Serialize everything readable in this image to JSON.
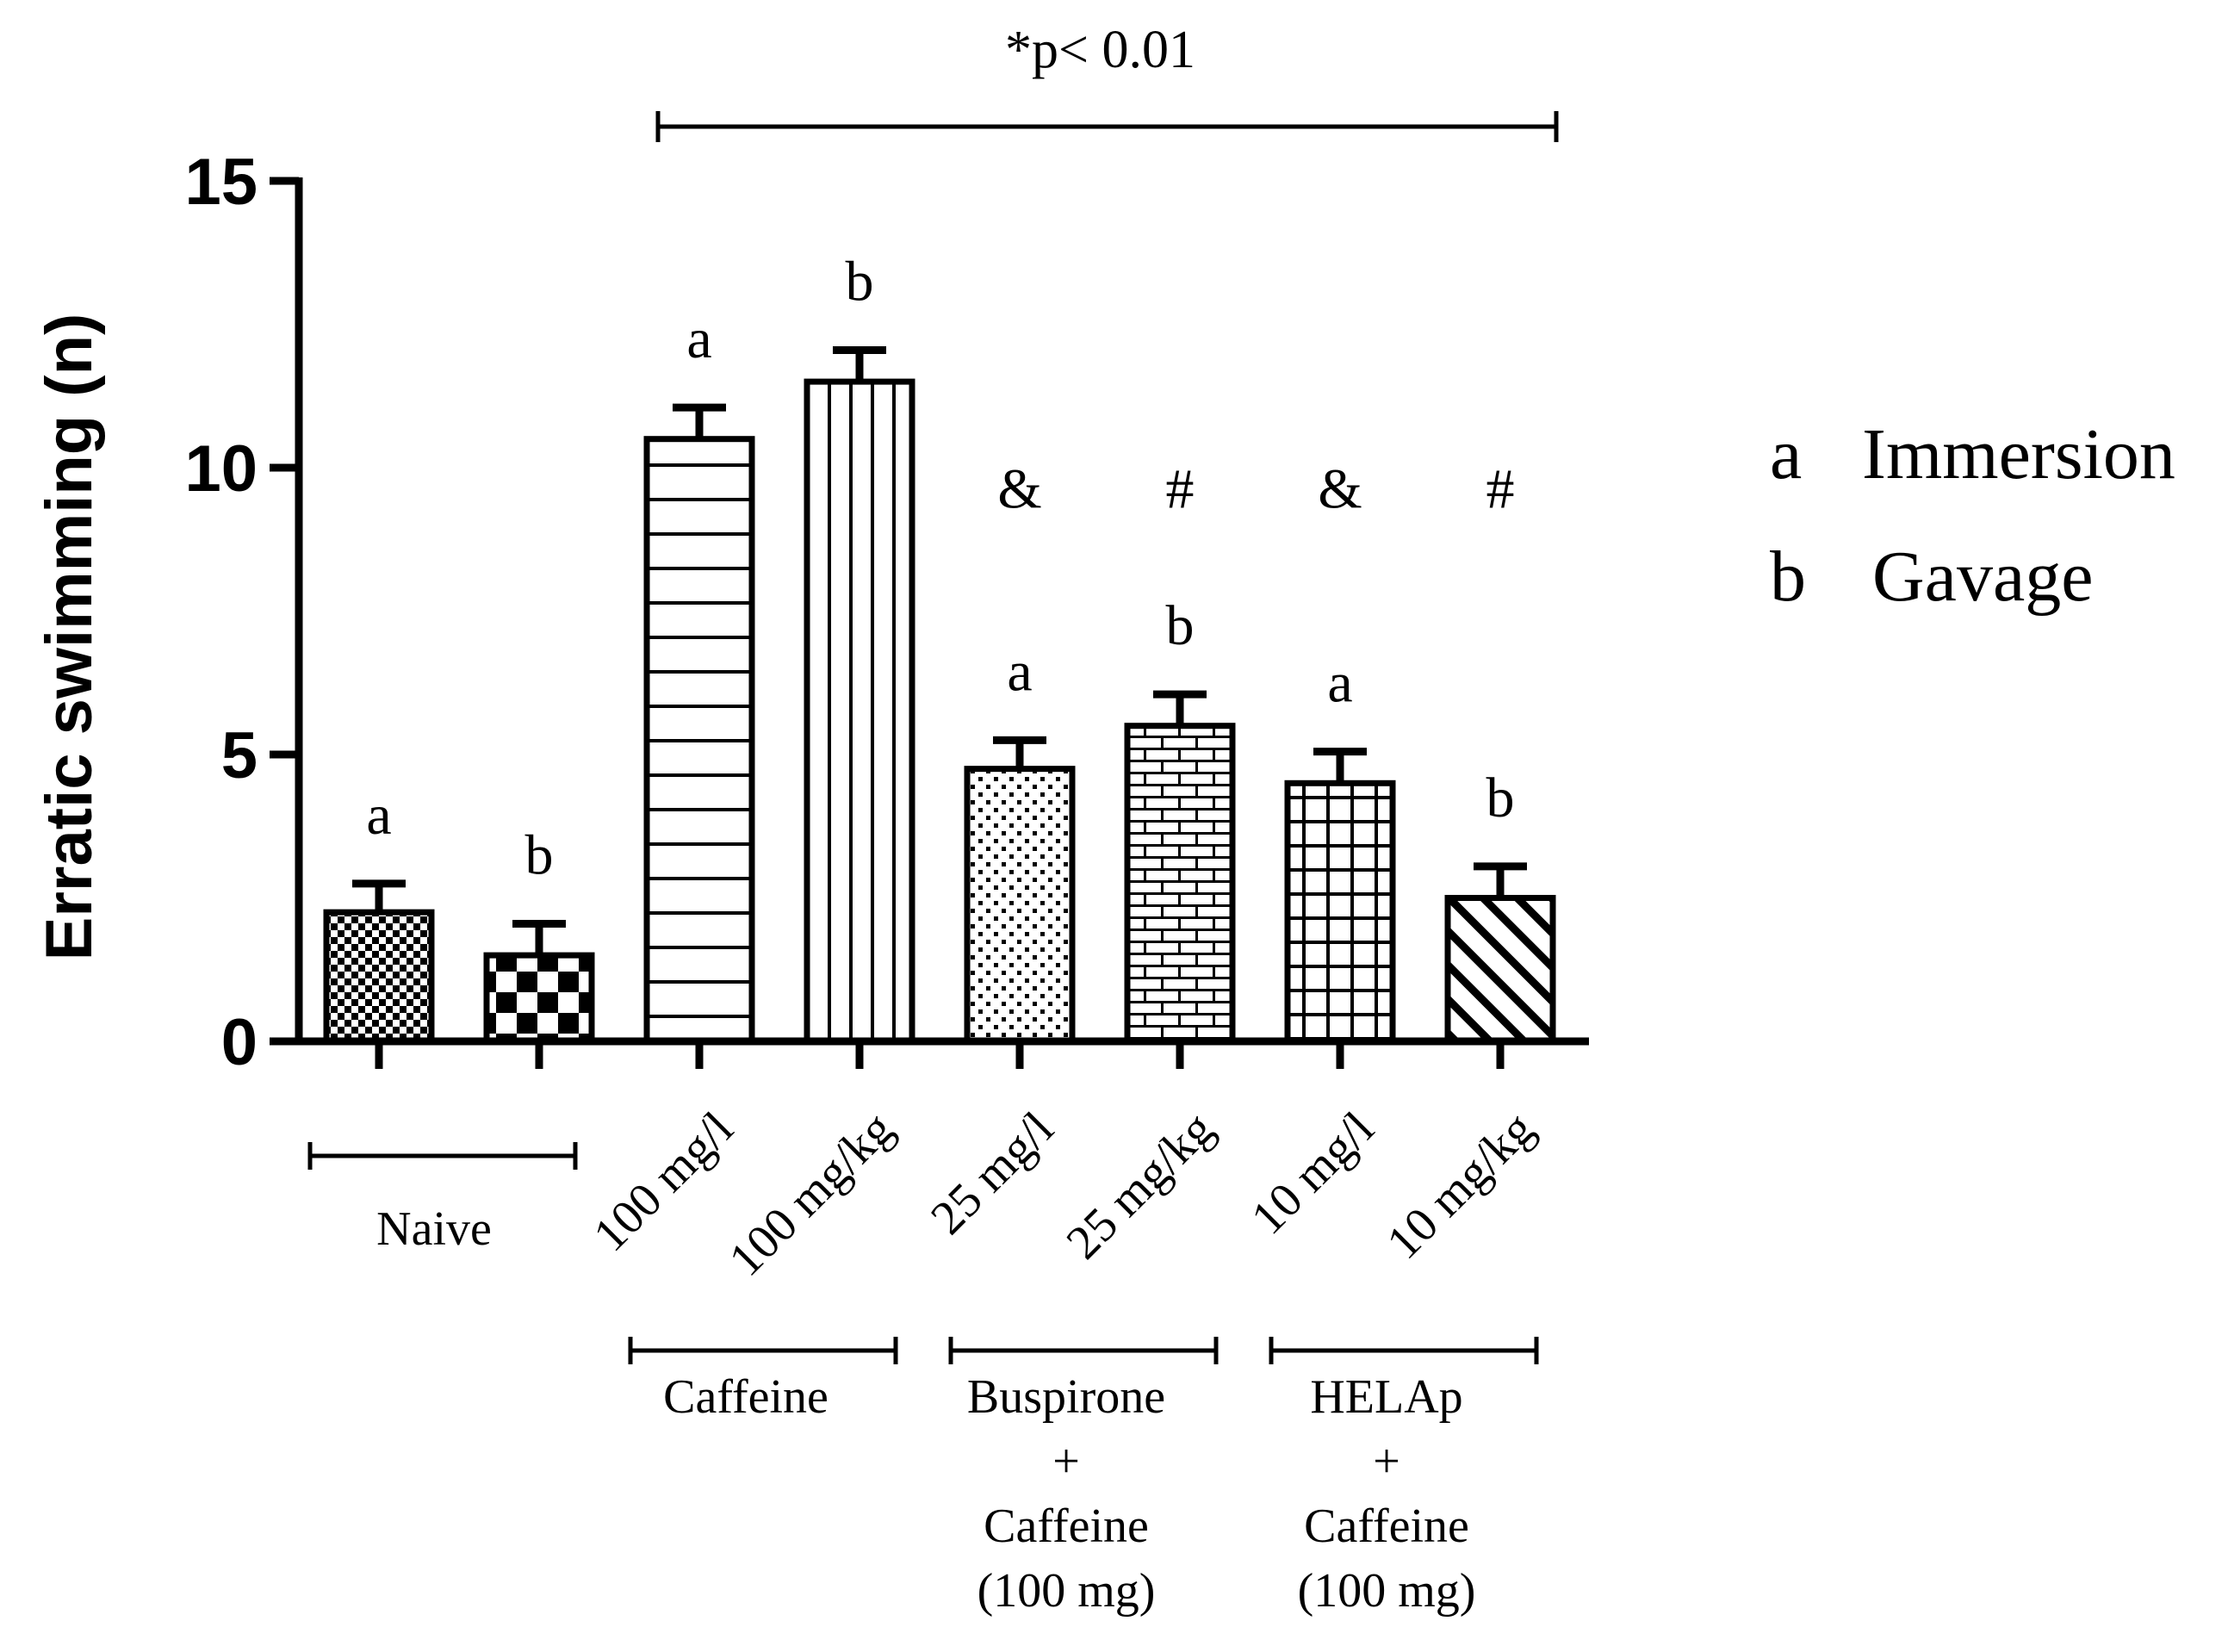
{
  "chart_data": {
    "type": "bar",
    "ylabel": "Erratic swimming (n)",
    "ylim": [
      0,
      15
    ],
    "yticks": [
      0,
      5,
      10,
      15
    ],
    "significance": {
      "label": "*p< 0.01",
      "span_from_bar": 2,
      "span_to_bar": 7
    },
    "legend": [
      {
        "key": "a",
        "label": "Immersion"
      },
      {
        "key": "b",
        "label": "Gavage"
      }
    ],
    "bars": [
      {
        "name": "naive-immersion",
        "value": 2.25,
        "error": 0.5,
        "letter": "a",
        "symbol": "",
        "pattern": "fine-check",
        "category_label": ""
      },
      {
        "name": "naive-gavage",
        "value": 1.5,
        "error": 0.55,
        "letter": "b",
        "symbol": "",
        "pattern": "coarse-check",
        "category_label": ""
      },
      {
        "name": "caffeine-immersion",
        "value": 10.5,
        "error": 0.55,
        "letter": "a",
        "symbol": "",
        "pattern": "horizontal-lines",
        "category_label": "100 mg/l"
      },
      {
        "name": "caffeine-gavage",
        "value": 11.5,
        "error": 0.55,
        "letter": "b",
        "symbol": "",
        "pattern": "vertical-lines",
        "category_label": "100 mg/kg"
      },
      {
        "name": "buspirone-immersion",
        "value": 4.75,
        "error": 0.5,
        "letter": "a",
        "symbol": "&",
        "pattern": "dots",
        "category_label": "25 mg/l"
      },
      {
        "name": "buspirone-gavage",
        "value": 5.5,
        "error": 0.55,
        "letter": "b",
        "symbol": "#",
        "pattern": "bricks",
        "category_label": "25 mg/kg"
      },
      {
        "name": "helap-immersion",
        "value": 4.5,
        "error": 0.55,
        "letter": "a",
        "symbol": "&",
        "pattern": "grid",
        "category_label": "10 mg/l"
      },
      {
        "name": "helap-gavage",
        "value": 2.5,
        "error": 0.55,
        "letter": "b",
        "symbol": "#",
        "pattern": "diagonal",
        "category_label": "10 mg/kg"
      }
    ],
    "groups": [
      {
        "from_bar": 0,
        "to_bar": 1,
        "lines": [
          "Naive"
        ]
      },
      {
        "from_bar": 2,
        "to_bar": 3,
        "lines": [
          "Caffeine"
        ]
      },
      {
        "from_bar": 4,
        "to_bar": 5,
        "lines": [
          "Buspirone",
          "+",
          "Caffeine",
          "(100 mg)"
        ]
      },
      {
        "from_bar": 6,
        "to_bar": 7,
        "lines": [
          "HELAp",
          "+",
          "Caffeine",
          "(100 mg)"
        ]
      }
    ]
  }
}
